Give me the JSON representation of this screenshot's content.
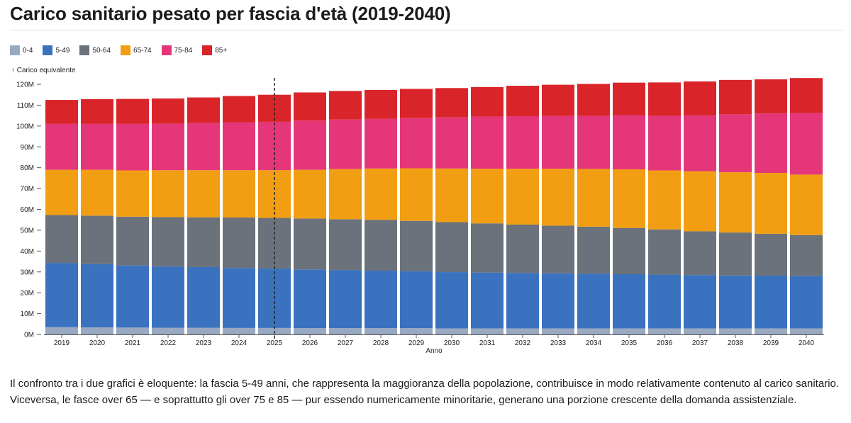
{
  "header": {
    "title": "Carico sanitario pesato per fascia d'età (2019-2040)"
  },
  "footer": {
    "line1": "Il confronto tra i due grafici è eloquente: la fascia 5-49 anni, che rappresenta la maggioranza della popolazione, contribuisce in modo relativamente contenuto al carico sanitario.",
    "line2": "Viceversa, le fasce over 65 — e soprattutto gli over 75 e 85 — pur essendo numericamente minoritarie, generano una porzione crescente della domanda assistenziale."
  },
  "chart_data": {
    "type": "bar",
    "stacked": true,
    "title": "Carico sanitario pesato per fascia d'età (2019-2040)",
    "xlabel": "Anno",
    "ylabel": "↑ Carico equivalente",
    "ylim": [
      0,
      120000000
    ],
    "yticks": [
      0,
      10000000,
      20000000,
      30000000,
      40000000,
      50000000,
      60000000,
      70000000,
      80000000,
      90000000,
      100000000,
      110000000,
      120000000
    ],
    "ytick_labels": [
      "0M",
      "10M",
      "20M",
      "30M",
      "40M",
      "50M",
      "60M",
      "70M",
      "80M",
      "90M",
      "100M",
      "110M",
      "120M"
    ],
    "reference_line": {
      "x": "2025",
      "style": "dashed"
    },
    "legend_position": "top-left",
    "categories": [
      "2019",
      "2020",
      "2021",
      "2022",
      "2023",
      "2024",
      "2025",
      "2026",
      "2027",
      "2028",
      "2029",
      "2030",
      "2031",
      "2032",
      "2033",
      "2034",
      "2035",
      "2036",
      "2037",
      "2038",
      "2039",
      "2040"
    ],
    "series": [
      {
        "name": "0-4",
        "color": "#9aa9c2",
        "values": [
          3.5,
          3.4,
          3.3,
          3.2,
          3.2,
          3.1,
          3.1,
          3.0,
          3.0,
          3.0,
          3.0,
          2.9,
          2.9,
          2.9,
          2.9,
          2.9,
          2.9,
          2.9,
          2.9,
          2.9,
          2.9,
          2.9
        ]
      },
      {
        "name": "5-49",
        "color": "#3a72bf",
        "values": [
          30.8,
          30.3,
          29.8,
          29.4,
          29.1,
          28.8,
          28.5,
          28.2,
          27.9,
          27.6,
          27.3,
          27.0,
          26.8,
          26.6,
          26.4,
          26.2,
          26.0,
          25.8,
          25.6,
          25.4,
          25.3,
          25.2
        ]
      },
      {
        "name": "50-64",
        "color": "#6b727b",
        "values": [
          23.0,
          23.3,
          23.4,
          23.7,
          23.9,
          24.2,
          24.3,
          24.4,
          24.4,
          24.4,
          24.2,
          24.0,
          23.6,
          23.2,
          22.9,
          22.6,
          22.2,
          21.7,
          21.0,
          20.6,
          20.1,
          19.6
        ]
      },
      {
        "name": "65-74",
        "color": "#f29e12",
        "values": [
          21.7,
          22.0,
          22.2,
          22.5,
          22.6,
          22.7,
          22.9,
          23.4,
          24.0,
          24.6,
          25.2,
          25.7,
          26.2,
          26.8,
          27.3,
          27.7,
          28.1,
          28.3,
          28.8,
          28.9,
          29.2,
          29.0
        ]
      },
      {
        "name": "75-84",
        "color": "#e5367a",
        "values": [
          22.0,
          22.0,
          22.3,
          22.3,
          22.6,
          23.0,
          23.2,
          23.6,
          23.8,
          23.8,
          24.1,
          24.5,
          25.0,
          25.2,
          25.3,
          25.4,
          26.0,
          26.2,
          26.8,
          27.8,
          28.5,
          29.5
        ]
      },
      {
        "name": "85+",
        "color": "#d9252a",
        "values": [
          11.5,
          11.9,
          12.0,
          12.1,
          12.3,
          12.6,
          13.0,
          13.5,
          13.7,
          13.9,
          14.0,
          14.1,
          14.2,
          14.6,
          15.0,
          15.4,
          15.6,
          16.0,
          16.3,
          16.5,
          16.4,
          16.8
        ]
      }
    ]
  }
}
